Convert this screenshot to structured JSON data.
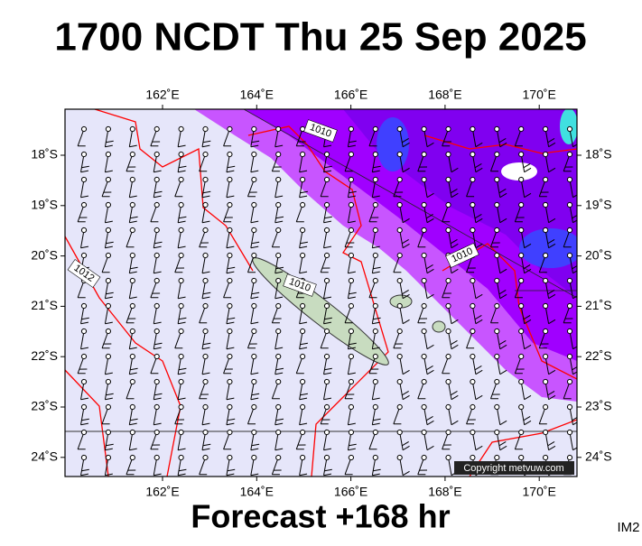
{
  "header": {
    "title": "1700 NCDT Thu 25 Sep 2025"
  },
  "map": {
    "lon_labels": [
      "162˚E",
      "164˚E",
      "166˚E",
      "168˚E",
      "170˚E"
    ],
    "lat_labels": [
      "18˚S",
      "19˚S",
      "20˚S",
      "21˚S",
      "22˚S",
      "23˚S",
      "24˚S"
    ],
    "isobar_labels": [
      "1010",
      "1010",
      "1012",
      "1010"
    ],
    "copyright": "Copyright metvuw.com"
  },
  "footer": {
    "forecast": "Forecast +168 hr",
    "code": "IM2"
  }
}
